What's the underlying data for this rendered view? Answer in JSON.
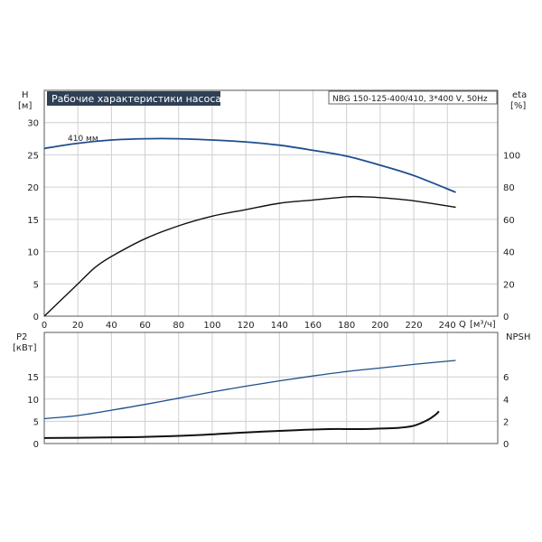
{
  "chart_data": [
    {
      "type": "line",
      "title": "Рабочие характеристики насоса",
      "subtitle": "NBG 150-125-400/410, 3*400 V, 50Hz",
      "left_axis": {
        "label": "H",
        "unit": "[м]",
        "ylim": [
          0,
          35
        ],
        "ticks": [
          0,
          5,
          10,
          15,
          20,
          25,
          30
        ]
      },
      "right_axis": {
        "label": "eta",
        "unit": "[%]",
        "ylim": [
          0,
          140
        ],
        "ticks": [
          0,
          20,
          40,
          60,
          80,
          100
        ]
      },
      "x_axis": {
        "label": "Q",
        "unit": "[м³/ч]",
        "xlim": [
          0,
          270
        ],
        "ticks": [
          0,
          20,
          40,
          60,
          80,
          100,
          120,
          140,
          160,
          180,
          200,
          220,
          240
        ]
      },
      "grid": true,
      "series": [
        {
          "name": "410 мм",
          "axis": "left",
          "color": "#1f4e8c",
          "points": [
            [
              0,
              26.0
            ],
            [
              20,
              26.8
            ],
            [
              40,
              27.3
            ],
            [
              60,
              27.5
            ],
            [
              80,
              27.5
            ],
            [
              100,
              27.3
            ],
            [
              120,
              27.0
            ],
            [
              140,
              26.5
            ],
            [
              160,
              25.7
            ],
            [
              180,
              24.8
            ],
            [
              200,
              23.4
            ],
            [
              220,
              21.8
            ],
            [
              245,
              19.2
            ]
          ]
        },
        {
          "name": "eta",
          "axis": "right",
          "color": "#111111",
          "points": [
            [
              0,
              0
            ],
            [
              10,
              10
            ],
            [
              20,
              20
            ],
            [
              30,
              30
            ],
            [
              40,
              37
            ],
            [
              60,
              48
            ],
            [
              80,
              56
            ],
            [
              100,
              62
            ],
            [
              120,
              66
            ],
            [
              140,
              70
            ],
            [
              160,
              72
            ],
            [
              180,
              74
            ],
            [
              190,
              74
            ],
            [
              200,
              73.5
            ],
            [
              220,
              71.5
            ],
            [
              245,
              67.5
            ]
          ]
        }
      ],
      "annotations": [
        {
          "text": "410 мм"
        }
      ]
    },
    {
      "type": "line",
      "left_axis": {
        "label": "P2",
        "unit": "[кВт]",
        "ylim": [
          0,
          25
        ],
        "ticks": [
          0,
          5,
          10,
          15
        ]
      },
      "right_axis": {
        "label": "NPSH",
        "unit": "",
        "ylim": [
          0,
          10
        ],
        "ticks": [
          0,
          2,
          4,
          6
        ]
      },
      "x_axis": {
        "xlim": [
          0,
          270
        ]
      },
      "grid": true,
      "series": [
        {
          "name": "P2",
          "axis": "left",
          "color": "#1f4e8c",
          "points": [
            [
              0,
              5.6
            ],
            [
              20,
              6.3
            ],
            [
              40,
              7.5
            ],
            [
              60,
              8.8
            ],
            [
              80,
              10.2
            ],
            [
              100,
              11.6
            ],
            [
              120,
              12.9
            ],
            [
              140,
              14.1
            ],
            [
              160,
              15.2
            ],
            [
              180,
              16.2
            ],
            [
              200,
              17.0
            ],
            [
              220,
              17.8
            ],
            [
              245,
              18.7
            ]
          ]
        },
        {
          "name": "NPSH",
          "axis": "right",
          "color": "#111111",
          "points": [
            [
              0,
              0.5
            ],
            [
              25,
              0.53
            ],
            [
              60,
              0.6
            ],
            [
              90,
              0.75
            ],
            [
              120,
              1.0
            ],
            [
              150,
              1.2
            ],
            [
              170,
              1.3
            ],
            [
              190,
              1.3
            ],
            [
              200,
              1.35
            ],
            [
              210,
              1.4
            ],
            [
              220,
              1.6
            ],
            [
              228,
              2.1
            ],
            [
              233,
              2.6
            ],
            [
              235,
              2.9
            ]
          ]
        }
      ]
    }
  ]
}
